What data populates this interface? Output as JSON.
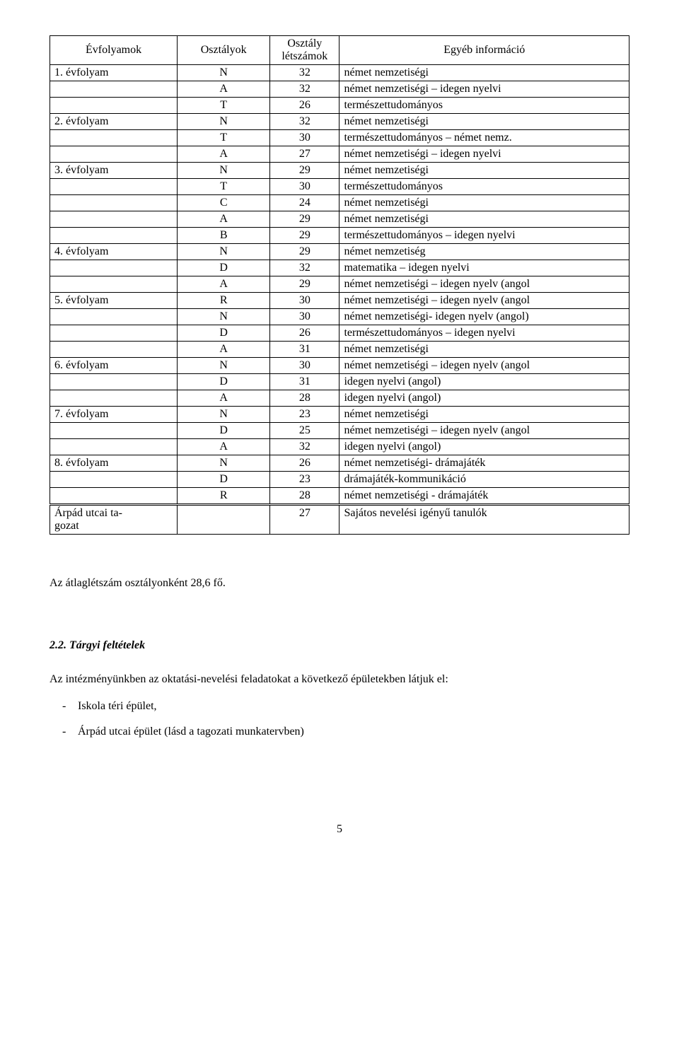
{
  "table": {
    "headers": {
      "grades": "Évfolyamok",
      "classes": "Osztályok",
      "counts_line1": "Osztály",
      "counts_line2": "létszámok",
      "info": "Egyéb információ"
    },
    "rows": [
      {
        "grade": "1. évfolyam",
        "class": "N",
        "count": "32",
        "info": "német nemzetiségi"
      },
      {
        "grade": "",
        "class": "A",
        "count": "32",
        "info": "német nemzetiségi – idegen nyelvi"
      },
      {
        "grade": "",
        "class": "T",
        "count": "26",
        "info": "természettudományos"
      },
      {
        "grade": "2. évfolyam",
        "class": "N",
        "count": "32",
        "info": "német nemzetiségi"
      },
      {
        "grade": "",
        "class": "T",
        "count": "30",
        "info": "természettudományos – német nemz."
      },
      {
        "grade": "",
        "class": "A",
        "count": "27",
        "info": "német nemzetiségi – idegen nyelvi"
      },
      {
        "grade": "3. évfolyam",
        "class": "N",
        "count": "29",
        "info": "német nemzetiségi"
      },
      {
        "grade": "",
        "class": "T",
        "count": "30",
        "info": "természettudományos"
      },
      {
        "grade": "",
        "class": "C",
        "count": "24",
        "info": "német nemzetiségi"
      },
      {
        "grade": "",
        "class": "A",
        "count": "29",
        "info": "német nemzetiségi"
      },
      {
        "grade": "",
        "class": "B",
        "count": "29",
        "info": "természettudományos – idegen nyelvi"
      },
      {
        "grade": "4. évfolyam",
        "class": "N",
        "count": "29",
        "info": "német nemzetiség"
      },
      {
        "grade": "",
        "class": "D",
        "count": "32",
        "info": "matematika – idegen nyelvi"
      },
      {
        "grade": "",
        "class": "A",
        "count": "29",
        "info": "német nemzetiségi – idegen nyelv (angol"
      },
      {
        "grade": "5. évfolyam",
        "class": "R",
        "count": "30",
        "info": "német nemzetiségi – idegen nyelv (angol"
      },
      {
        "grade": "",
        "class": "N",
        "count": "30",
        "info": "német nemzetiségi- idegen nyelv (angol)"
      },
      {
        "grade": "",
        "class": "D",
        "count": "26",
        "info": "természettudományos – idegen nyelvi"
      },
      {
        "grade": "",
        "class": "A",
        "count": "31",
        "info": "német nemzetiségi"
      },
      {
        "grade": "6. évfolyam",
        "class": "N",
        "count": "30",
        "info": "német nemzetiségi – idegen nyelv (angol"
      },
      {
        "grade": "",
        "class": "D",
        "count": "31",
        "info": "idegen nyelvi (angol)"
      },
      {
        "grade": "",
        "class": "A",
        "count": "28",
        "info": "idegen nyelvi (angol)"
      },
      {
        "grade": "7. évfolyam",
        "class": "N",
        "count": "23",
        "info": "német nemzetiségi"
      },
      {
        "grade": "",
        "class": "D",
        "count": "25",
        "info": "német nemzetiségi – idegen nyelv (angol"
      },
      {
        "grade": "",
        "class": "A",
        "count": "32",
        "info": "idegen nyelvi (angol)"
      },
      {
        "grade": "8. évfolyam",
        "class": "N",
        "count": "26",
        "info": "német nemzetiségi- drámajáték"
      },
      {
        "grade": "",
        "class": "D",
        "count": "23",
        "info": "drámajáték-kommunikáció"
      },
      {
        "grade": "",
        "class": "R",
        "count": "28",
        "info": "német nemzetiségi - drámajáték"
      }
    ],
    "footer": {
      "grade_line1": "Árpád utcai ta-",
      "grade_line2": "gozat",
      "class": "",
      "count": "27",
      "info": "Sajátos nevelési igényű tanulók"
    }
  },
  "avg_text": "Az átlaglétszám osztályonként  28,6 fő.",
  "section_heading": "2.2. Tárgyi feltételek",
  "intro_text": "Az intézményünkben az oktatási-nevelési feladatokat a következő épületekben látjuk el:",
  "bullets": [
    "Iskola téri épület,",
    "Árpád utcai épület (lásd a tagozati munkatervben)"
  ],
  "page_number": "5"
}
